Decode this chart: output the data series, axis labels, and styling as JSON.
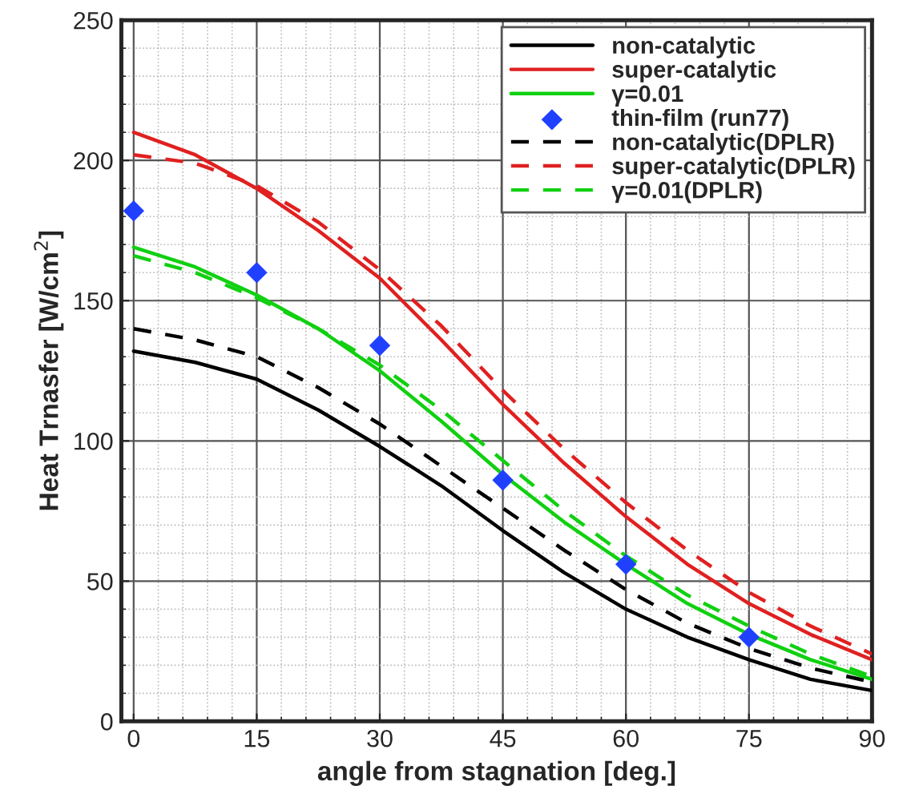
{
  "chart_data": {
    "type": "line",
    "xlabel": "angle from stagnation [deg.]",
    "ylabel": "Heat Trnasfer [W/cm$^{2}$]",
    "x": [
      0,
      7.5,
      15,
      22.5,
      30,
      37.5,
      45,
      52.5,
      60,
      67.5,
      75,
      82.5,
      90
    ],
    "series": [
      {
        "name": "non-catalytic",
        "color": "#000000",
        "line_style": "solid",
        "values": [
          132,
          128,
          122,
          111,
          98,
          84,
          68,
          53,
          40,
          30,
          22,
          15,
          11
        ]
      },
      {
        "name": "super-catalytic",
        "color": "#e02020",
        "line_style": "solid",
        "values": [
          210,
          202,
          190,
          175,
          158,
          136,
          113,
          92,
          73,
          56,
          42,
          31,
          22
        ]
      },
      {
        "name": "γ=0.01",
        "color": "#10d010",
        "line_style": "solid",
        "values": [
          169,
          162,
          152,
          140,
          125,
          107,
          88,
          71,
          56,
          42,
          31,
          22,
          15
        ]
      },
      {
        "name": "thin-film (run77)",
        "type": "scatter",
        "marker": "diamond",
        "color": "#2040ff",
        "x": [
          0,
          15,
          30,
          45,
          60,
          75
        ],
        "values": [
          182,
          160,
          134,
          86,
          56,
          30
        ]
      },
      {
        "name": "non-catalytic(DPLR)",
        "color": "#000000",
        "line_style": "dashed",
        "values": [
          140,
          136,
          130,
          119,
          106,
          91,
          76,
          61,
          47,
          35,
          26,
          19,
          14
        ]
      },
      {
        "name": "super-catalytic(DPLR)",
        "color": "#e02020",
        "line_style": "dashed",
        "values": [
          202,
          199,
          191,
          178,
          161,
          141,
          118,
          97,
          78,
          61,
          46,
          34,
          24
        ]
      },
      {
        "name": "γ=0.01(DPLR)",
        "color": "#10d010",
        "line_style": "dashed",
        "values": [
          166,
          160,
          151,
          140,
          127,
          111,
          93,
          75,
          59,
          45,
          34,
          24,
          16
        ]
      }
    ],
    "xlim": [
      -1.5,
      90
    ],
    "xticks": [
      0,
      15,
      30,
      45,
      60,
      75,
      90
    ],
    "ylim": [
      0,
      250
    ],
    "yticks": [
      0,
      50,
      100,
      150,
      200,
      250
    ],
    "grid": true,
    "legend": "top right"
  }
}
